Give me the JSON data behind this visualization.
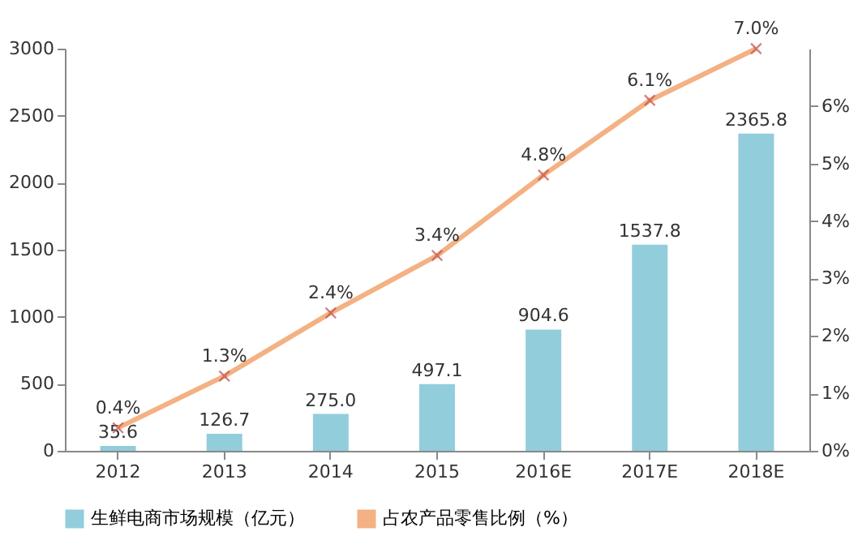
{
  "chart_data": {
    "type": "bar",
    "categories": [
      "2012",
      "2013",
      "2014",
      "2015",
      "2016E",
      "2017E",
      "2018E"
    ],
    "series": [
      {
        "name": "生鲜电商市场规模（亿元）",
        "color": "#92cddc",
        "values": [
          35.6,
          126.7,
          275.0,
          497.1,
          904.6,
          1537.8,
          2365.8
        ],
        "value_labels": [
          "35.6",
          "126.7",
          "275.0",
          "497.1",
          "904.6",
          "1537.8",
          "2365.8"
        ]
      },
      {
        "name": "占农产品零售比例（%）",
        "type": "line",
        "axis": "y2",
        "color": "#f4b183",
        "marker": "cross",
        "values": [
          0.4,
          1.3,
          2.4,
          3.4,
          4.8,
          6.1,
          7.0
        ],
        "value_labels": [
          "0.4%",
          "1.3%",
          "2.4%",
          "3.4%",
          "4.8%",
          "6.1%",
          "7.0%"
        ]
      }
    ],
    "ylim": [
      0,
      3000
    ],
    "yticks": [
      0,
      500,
      1000,
      1500,
      2000,
      2500,
      3000
    ],
    "y2lim": [
      0,
      7
    ],
    "y2ticks": [
      {
        "value": 0,
        "label": "0%"
      },
      {
        "value": 1,
        "label": "1%"
      },
      {
        "value": 2,
        "label": "2%"
      },
      {
        "value": 3,
        "label": "3%"
      },
      {
        "value": 4,
        "label": "4%"
      },
      {
        "value": 5,
        "label": "5%"
      },
      {
        "value": 6,
        "label": "6%"
      }
    ],
    "grid": false,
    "legend": "bottom"
  }
}
